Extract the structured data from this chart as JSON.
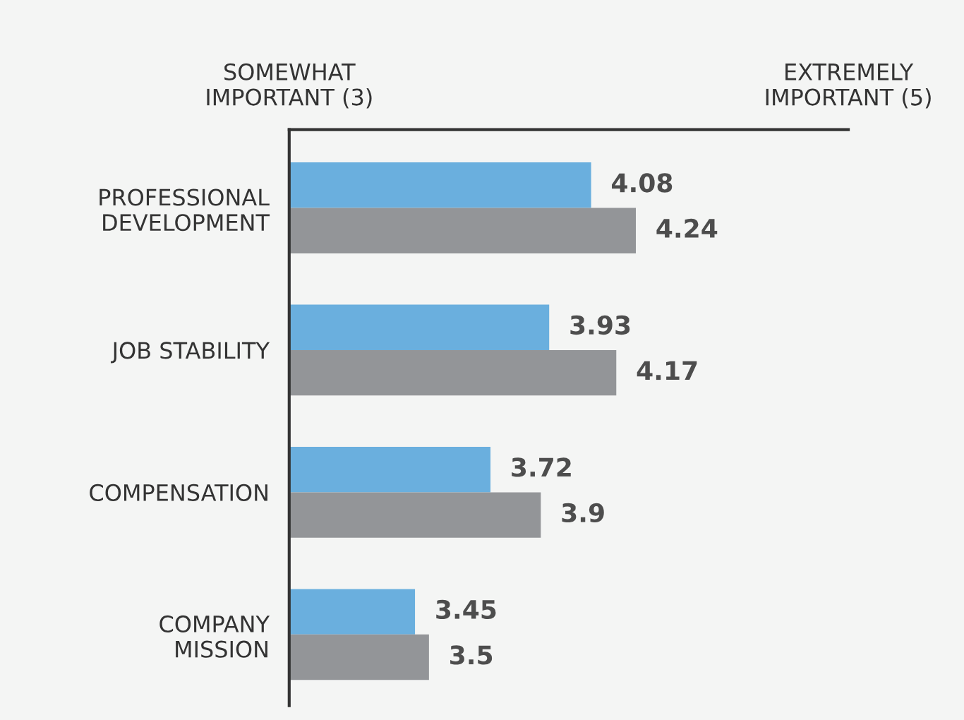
{
  "chart_data": {
    "type": "bar",
    "orientation": "horizontal",
    "categories": [
      "PROFESSIONAL\nDEVELOPMENT",
      "JOB STABILITY",
      "COMPENSATION",
      "COMPANY\nMISSION"
    ],
    "series": [
      {
        "color": "#6aafde",
        "values": [
          4.08,
          3.93,
          3.72,
          3.45
        ]
      },
      {
        "color": "#939598",
        "values": [
          4.24,
          4.17,
          3.9,
          3.5
        ]
      }
    ],
    "xlim": [
      3,
      5
    ],
    "xticks": [
      {
        "value": 3,
        "label": "SOMEWHAT\nIMPORTANT (3)"
      },
      {
        "value": 5,
        "label": "EXTREMELY\nIMPORTANT (5)"
      }
    ],
    "data_labels": true,
    "grid": false,
    "legend": false
  }
}
